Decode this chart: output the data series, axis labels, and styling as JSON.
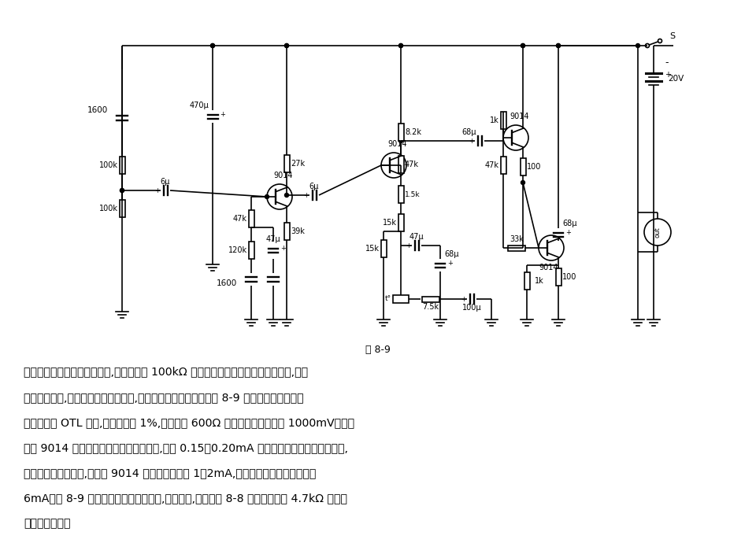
{
  "bg_color": "#ffffff",
  "text_color": "#000000",
  "fig_caption": "图 8-9",
  "body_text_lines": [
    "是简单的阻容耦合两级放大器,右端的一只 100kΩ 电位器是用来调节信号输出电平的,宜选",
    "用线性电位器,这个电路只要焊接无误,几乎毋需调整就能工作。图 8-9 的末级是工作在甲类",
    "放大状态的 OTL 电路,失真度小于 1%,当负载为 600Ω 时的输出电压能超过 1000mV。第一",
    "级的 9014 有意把工作点的电流选得小些,约在 0.15～0.20mA 之间。以获得较高的输入阻抗,",
    "适应选频电路的需要,第二级 9014 的集电极电流为 1～2mA,末级推挽管的集电极电流为",
    "6mA。图 8-9 末级输出电平控制电位器,如有需要,可仿照图 8-8 的样子用一只 4.7kΩ 的电位",
    "器接在输出端。"
  ],
  "lw": 1.2
}
